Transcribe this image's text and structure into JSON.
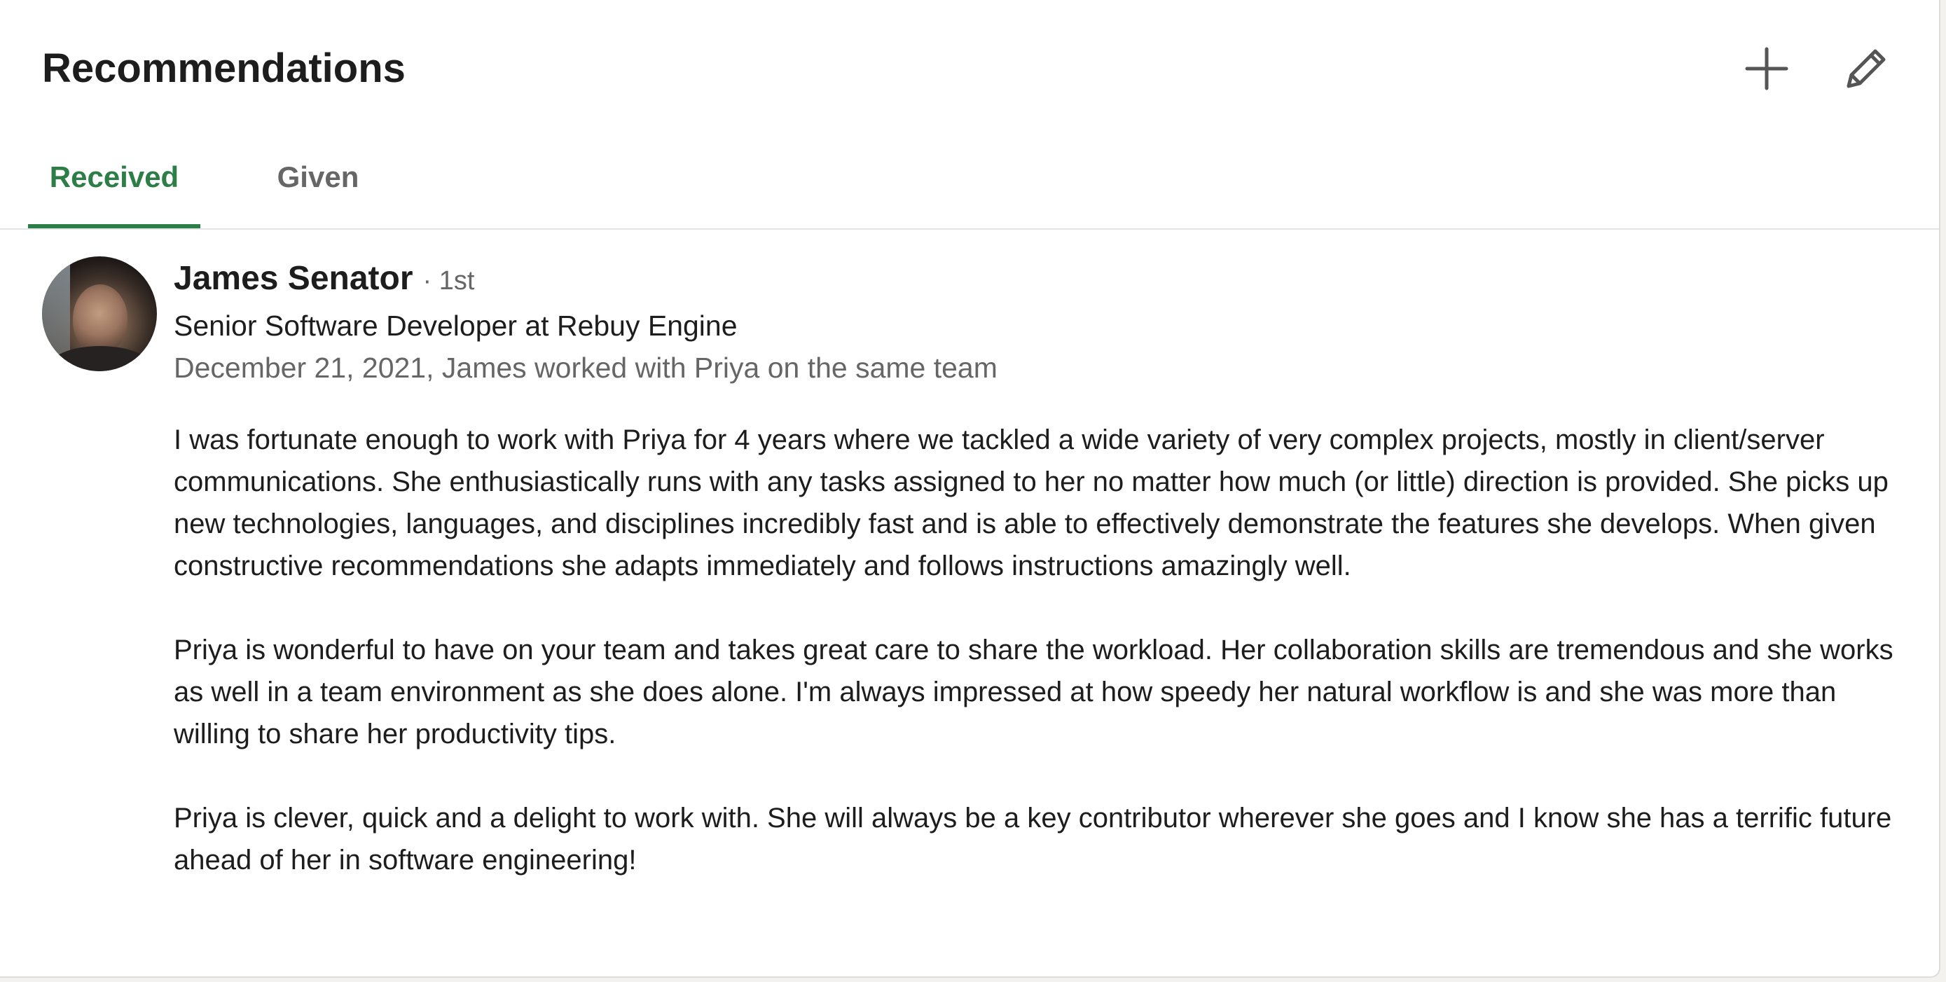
{
  "header": {
    "title": "Recommendations",
    "add_icon": "plus-icon",
    "edit_icon": "pencil-icon"
  },
  "tabs": [
    {
      "label": "Received",
      "selected": true
    },
    {
      "label": "Given",
      "selected": false
    }
  ],
  "recommendation": {
    "name": "James Senator",
    "degree": "· 1st",
    "headline": "Senior Software Developer at Rebuy Engine",
    "meta": "December 21, 2021, James worked with Priya on the same team",
    "paragraphs": [
      "I was fortunate enough to work with Priya for 4 years where we tackled a wide variety of very complex projects, mostly in client/server communications. She enthusiastically runs with any tasks assigned to her no matter how much (or little) direction is provided. She picks up new technologies, languages, and disciplines incredibly fast and is able to effectively demonstrate the features she develops. When given constructive recommendations she adapts immediately and follows instructions amazingly well.",
      "Priya is wonderful to have on your team and takes great care to share the workload. Her collaboration skills are tremendous and she works as well in a team environment as she does alone. I'm always impressed at how speedy her natural workflow is and she was more than willing to share her productivity tips.",
      "Priya is clever, quick and a delight to work with. She will always be a key contributor wherever she goes and I know she has a terrific future ahead of her in software engineering!"
    ]
  },
  "colors": {
    "accent": "#2d7d46",
    "text": "#1d1d1d",
    "muted": "#666666"
  }
}
